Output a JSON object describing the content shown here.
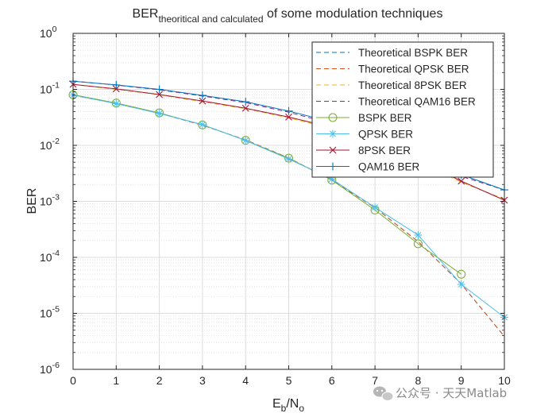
{
  "chart_data": {
    "type": "line",
    "title": {
      "base": "BER",
      "sub": "theoritical and calculated",
      "rest": " of some modulation techniques"
    },
    "xlabel": {
      "base": "E",
      "sub1": "b",
      "mid": "/N",
      "sub2": "o"
    },
    "ylabel": "BER",
    "xlim": [
      0,
      10
    ],
    "ylim_log10": [
      -6,
      0
    ],
    "y_scale": "log",
    "grid": true,
    "legend_position": "top-right",
    "x_ticks": [
      "0",
      "1",
      "2",
      "3",
      "4",
      "5",
      "6",
      "7",
      "8",
      "9",
      "10"
    ],
    "y_ticks": [
      {
        "base": "10",
        "exp": "-6",
        "log": -6
      },
      {
        "base": "10",
        "exp": "-5",
        "log": -5
      },
      {
        "base": "10",
        "exp": "-4",
        "log": -4
      },
      {
        "base": "10",
        "exp": "-3",
        "log": -3
      },
      {
        "base": "10",
        "exp": "-2",
        "log": -2
      },
      {
        "base": "10",
        "exp": "-1",
        "log": -1
      },
      {
        "base": "10",
        "exp": "0",
        "log": 0
      }
    ],
    "series": [
      {
        "name": "Theoretical BSPK BER",
        "style": "dashed",
        "color": "#0072BD",
        "marker": "none",
        "x": [
          0,
          1,
          2,
          3,
          4,
          5,
          6,
          7,
          8,
          9,
          10
        ],
        "y": [
          0.0786,
          0.0563,
          0.0375,
          0.0229,
          0.0125,
          0.00595,
          0.00239,
          0.000773,
          0.000191,
          3.36e-05,
          3.87e-06
        ]
      },
      {
        "name": "Theoretical QPSK BER",
        "style": "dashed",
        "color": "#D95319",
        "marker": "none",
        "x": [
          0,
          1,
          2,
          3,
          4,
          5,
          6,
          7,
          8,
          9,
          10
        ],
        "y": [
          0.0786,
          0.0563,
          0.0375,
          0.0229,
          0.0125,
          0.00595,
          0.00239,
          0.000773,
          0.000191,
          3.36e-05,
          3.87e-06
        ]
      },
      {
        "name": "Theoretical 8PSK BER",
        "style": "dashed",
        "color": "#EDB120",
        "marker": "none",
        "x": [
          0,
          1,
          2,
          3,
          4,
          5,
          6,
          7,
          8,
          9,
          10
        ],
        "y": [
          0.122,
          0.1,
          0.08,
          0.06,
          0.045,
          0.031,
          0.02,
          0.011,
          0.0052,
          0.0022,
          0.0011
        ]
      },
      {
        "name": "Theoretical QAM16 BER",
        "style": "dashed",
        "color": "#7E2F8E",
        "marker": "none",
        "x": [
          0,
          1,
          2,
          3,
          4,
          5,
          6,
          7,
          8,
          9,
          10
        ],
        "y": [
          0.141,
          0.119,
          0.098,
          0.076,
          0.058,
          0.039,
          0.0245,
          0.0135,
          0.0065,
          0.0028,
          0.0016
        ]
      },
      {
        "name": "BSPK BER",
        "style": "solid",
        "color": "#77AC30",
        "marker": "circle",
        "x": [
          0,
          1,
          2,
          3,
          4,
          5,
          6,
          7,
          8,
          9
        ],
        "y": [
          0.08,
          0.057,
          0.038,
          0.0232,
          0.0123,
          0.0059,
          0.0024,
          0.0007,
          0.000175,
          5e-05
        ]
      },
      {
        "name": "QPSK BER",
        "style": "solid",
        "color": "#4DBEEE",
        "marker": "asterisk",
        "x": [
          0,
          1,
          2,
          3,
          4,
          5,
          6,
          7,
          8,
          9,
          10
        ],
        "y": [
          0.079,
          0.0555,
          0.037,
          0.0235,
          0.0122,
          0.0057,
          0.0025,
          0.00078,
          0.00025,
          3.3e-05,
          8.5e-06
        ]
      },
      {
        "name": "8PSK BER",
        "style": "solid",
        "color": "#A2142F",
        "marker": "x",
        "x": [
          0,
          1,
          2,
          3,
          4,
          5,
          6,
          7,
          8,
          9,
          10
        ],
        "y": [
          0.123,
          0.102,
          0.081,
          0.062,
          0.046,
          0.032,
          0.021,
          0.0115,
          0.0055,
          0.0023,
          0.00105
        ]
      },
      {
        "name": "QAM16 BER",
        "style": "solid",
        "color": "#0072BD",
        "marker": "plus",
        "x": [
          0,
          1,
          2,
          3,
          4,
          5,
          6,
          7,
          8,
          9,
          10
        ],
        "y": [
          0.14,
          0.12,
          0.1,
          0.078,
          0.06,
          0.041,
          0.026,
          0.0142,
          0.0068,
          0.003,
          0.0016
        ]
      }
    ]
  },
  "watermark": {
    "text": "公众号 · 天天Matlab",
    "icon": "wechat-icon"
  }
}
